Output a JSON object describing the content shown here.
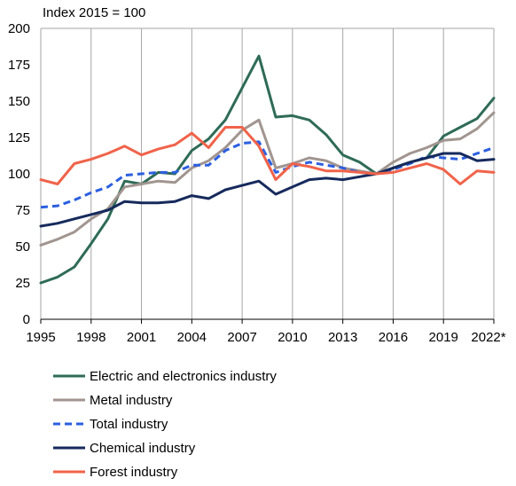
{
  "chart_data": {
    "type": "line",
    "subtitle": "Index 2015 = 100",
    "ylim": [
      0,
      200
    ],
    "yticks": [
      0,
      25,
      50,
      75,
      100,
      125,
      150,
      175,
      200
    ],
    "xlim": [
      1995,
      2022
    ],
    "xtick_values": [
      1995,
      1998,
      2001,
      2004,
      2007,
      2010,
      2013,
      2016,
      2019,
      2022
    ],
    "xtick_labels": [
      "1995",
      "1998",
      "2001",
      "2004",
      "2007",
      "2010",
      "2013",
      "2016",
      "2019",
      "2022*"
    ],
    "grid": "vertical",
    "legend_position": "bottom",
    "x": [
      1995,
      1996,
      1997,
      1998,
      1999,
      2000,
      2001,
      2002,
      2003,
      2004,
      2005,
      2006,
      2007,
      2008,
      2009,
      2010,
      2011,
      2012,
      2013,
      2014,
      2015,
      2016,
      2017,
      2018,
      2019,
      2020,
      2021,
      2022
    ],
    "series": [
      {
        "name": "Electric and electronics industry",
        "color": "#2e6b57",
        "dash": "solid",
        "values": [
          25,
          29,
          36,
          52,
          69,
          95,
          93,
          101,
          100,
          116,
          124,
          137,
          159,
          181,
          139,
          140,
          137,
          127,
          113,
          108,
          100,
          104,
          108,
          111,
          126,
          132,
          138,
          152
        ]
      },
      {
        "name": "Metal industry",
        "color": "#a19590",
        "dash": "solid",
        "values": [
          51,
          55,
          60,
          69,
          76,
          91,
          93,
          95,
          94,
          104,
          109,
          118,
          130,
          137,
          104,
          107,
          111,
          109,
          104,
          102,
          100,
          108,
          114,
          118,
          123,
          124,
          131,
          142
        ]
      },
      {
        "name": "Total industry",
        "color": "#2b5fe0",
        "dash": "dashed",
        "values": [
          77,
          78,
          82,
          87,
          91,
          99,
          100,
          101,
          101,
          106,
          106,
          116,
          121,
          122,
          101,
          105,
          108,
          106,
          104,
          101,
          100,
          103,
          107,
          112,
          111,
          110,
          114,
          118
        ]
      },
      {
        "name": "Chemical industry",
        "color": "#162a5c",
        "dash": "solid",
        "values": [
          64,
          66,
          69,
          72,
          75,
          81,
          80,
          80,
          81,
          85,
          83,
          89,
          92,
          95,
          86,
          91,
          96,
          97,
          96,
          98,
          100,
          104,
          108,
          111,
          114,
          114,
          109,
          110
        ]
      },
      {
        "name": "Forest industry",
        "color": "#f0634a",
        "dash": "solid",
        "values": [
          96,
          93,
          107,
          110,
          114,
          119,
          113,
          117,
          120,
          128,
          118,
          132,
          132,
          119,
          96,
          107,
          105,
          102,
          102,
          101,
          100,
          101,
          104,
          107,
          103,
          93,
          102,
          101
        ]
      }
    ]
  }
}
